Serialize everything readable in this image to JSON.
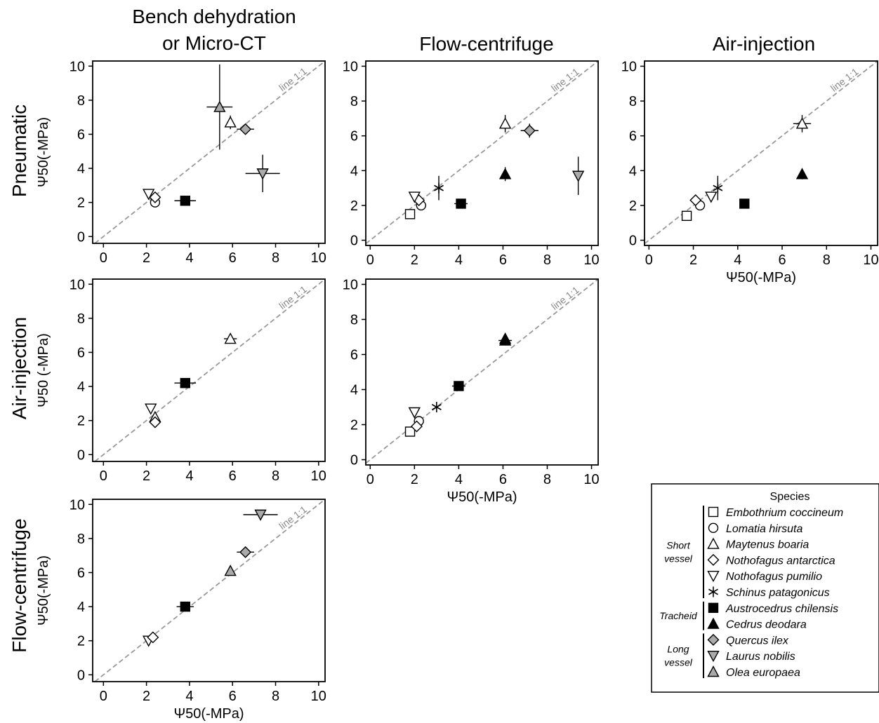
{
  "column_headers": {
    "bench": [
      "Bench dehydration",
      "or Micro-CT"
    ],
    "flow": "Flow-centrifuge",
    "air": "Air-injection"
  },
  "row_headers": {
    "pneumatic": "Pneumatic",
    "air": "Air-injection",
    "flow": "Flow-centrifuge"
  },
  "axis_symbol": "Ψ",
  "axis_sub": "50",
  "axis_unit": "(-MPa)",
  "ref_line_label": "line 1:1",
  "chart_data": [
    {
      "id": "pneu-vs-bench",
      "type": "scatter",
      "xlim": [
        -0.5,
        10.3
      ],
      "ylim": [
        -0.4,
        10.3
      ],
      "xticks": [
        0,
        2,
        4,
        6,
        8,
        10
      ],
      "yticks": [
        0,
        2,
        4,
        6,
        8,
        10
      ],
      "ylabel": "Ψ50(-MPa)",
      "xlabel": "",
      "points": [
        {
          "species": "Lomatia hirsuta",
          "x": 2.4,
          "y": 2.0
        },
        {
          "species": "Nothofagus antarctica",
          "x": 2.4,
          "y": 2.3
        },
        {
          "species": "Nothofagus pumilio",
          "x": 2.1,
          "y": 2.5
        },
        {
          "species": "Austrocedrus chilensis",
          "x": 3.8,
          "y": 2.1,
          "xerr": 0.5
        },
        {
          "species": "Olea europaea",
          "x": 5.4,
          "y": 7.6,
          "xerr": 0.6,
          "yerr": 2.5
        },
        {
          "species": "Maytenus boaria",
          "x": 5.9,
          "y": 6.7,
          "yerr": 0.4
        },
        {
          "species": "Quercus ilex",
          "x": 6.6,
          "y": 6.3,
          "xerr": 0.4
        },
        {
          "species": "Laurus nobilis",
          "x": 7.4,
          "y": 3.7,
          "xerr": 0.8,
          "yerr": 1.1
        }
      ]
    },
    {
      "id": "pneu-vs-flow",
      "type": "scatter",
      "xlim": [
        -0.2,
        10.3
      ],
      "ylim": [
        -0.3,
        10.3
      ],
      "xticks": [
        0,
        2,
        4,
        6,
        8,
        10
      ],
      "yticks": [
        0,
        2,
        4,
        6,
        8,
        10
      ],
      "ylabel": "",
      "xlabel": "",
      "points": [
        {
          "species": "Embothrium coccineum",
          "x": 1.8,
          "y": 1.5
        },
        {
          "species": "Lomatia hirsuta",
          "x": 2.3,
          "y": 2.0
        },
        {
          "species": "Nothofagus antarctica",
          "x": 2.2,
          "y": 2.3
        },
        {
          "species": "Nothofagus pumilio",
          "x": 2.0,
          "y": 2.5
        },
        {
          "species": "Schinus patagonicus",
          "x": 3.1,
          "y": 3.0,
          "yerr": 0.7
        },
        {
          "species": "Austrocedrus chilensis",
          "x": 4.1,
          "y": 2.1,
          "xerr": 0.3
        },
        {
          "species": "Cedrus deodara",
          "x": 6.1,
          "y": 3.8,
          "yerr": 0.4
        },
        {
          "species": "Maytenus boaria",
          "x": 6.1,
          "y": 6.7,
          "yerr": 0.5
        },
        {
          "species": "Quercus ilex",
          "x": 7.2,
          "y": 6.3,
          "xerr": 0.4,
          "yerr": 0.4
        },
        {
          "species": "Laurus nobilis",
          "x": 9.4,
          "y": 3.7,
          "yerr": 1.1
        }
      ]
    },
    {
      "id": "pneu-vs-air",
      "type": "scatter",
      "xlim": [
        -0.2,
        10.3
      ],
      "ylim": [
        -0.3,
        10.3
      ],
      "xticks": [
        0,
        2,
        4,
        6,
        8,
        10
      ],
      "yticks": [
        0,
        2,
        4,
        6,
        8,
        10
      ],
      "ylabel": "",
      "xlabel": "Ψ50(-MPa)",
      "points": [
        {
          "species": "Embothrium coccineum",
          "x": 1.7,
          "y": 1.4
        },
        {
          "species": "Lomatia hirsuta",
          "x": 2.3,
          "y": 2.0
        },
        {
          "species": "Nothofagus antarctica",
          "x": 2.1,
          "y": 2.3
        },
        {
          "species": "Nothofagus pumilio",
          "x": 2.8,
          "y": 2.5
        },
        {
          "species": "Schinus patagonicus",
          "x": 3.1,
          "y": 3.0,
          "yerr": 0.7
        },
        {
          "species": "Austrocedrus chilensis",
          "x": 4.3,
          "y": 2.1
        },
        {
          "species": "Maytenus boaria",
          "x": 6.9,
          "y": 6.7,
          "xerr": 0.4,
          "yerr": 0.5
        },
        {
          "species": "Cedrus deodara",
          "x": 6.9,
          "y": 3.8,
          "yerr": 0.3
        }
      ]
    },
    {
      "id": "air-vs-bench",
      "type": "scatter",
      "xlim": [
        -0.5,
        10.3
      ],
      "ylim": [
        -0.4,
        10.3
      ],
      "xticks": [
        0,
        2,
        4,
        6,
        8,
        10
      ],
      "yticks": [
        0,
        2,
        4,
        6,
        8,
        10
      ],
      "ylabel": "Ψ50 (-MPa)",
      "xlabel": "",
      "points": [
        {
          "species": "Nothofagus pumilio",
          "x": 2.2,
          "y": 2.7
        },
        {
          "species": "Maytenus boaria",
          "x": 2.4,
          "y": 2.2
        },
        {
          "species": "Nothofagus antarctica",
          "x": 2.4,
          "y": 1.9
        },
        {
          "species": "Austrocedrus chilensis",
          "x": 3.8,
          "y": 4.2,
          "xerr": 0.5
        },
        {
          "species": "Maytenus boaria",
          "x": 5.9,
          "y": 6.8,
          "xerr": 0.3
        }
      ]
    },
    {
      "id": "air-vs-flow",
      "type": "scatter",
      "xlim": [
        -0.2,
        10.3
      ],
      "ylim": [
        -0.3,
        10.3
      ],
      "xticks": [
        0,
        2,
        4,
        6,
        8,
        10
      ],
      "yticks": [
        0,
        2,
        4,
        6,
        8,
        10
      ],
      "ylabel": "",
      "xlabel": "Ψ50(-MPa)",
      "points": [
        {
          "species": "Embothrium coccineum",
          "x": 1.8,
          "y": 1.6
        },
        {
          "species": "Nothofagus pumilio",
          "x": 2.0,
          "y": 2.7
        },
        {
          "species": "Lomatia hirsuta",
          "x": 2.2,
          "y": 2.2
        },
        {
          "species": "Nothofagus antarctica",
          "x": 2.1,
          "y": 1.9
        },
        {
          "species": "Schinus patagonicus",
          "x": 3.0,
          "y": 3.0
        },
        {
          "species": "Austrocedrus chilensis",
          "x": 4.0,
          "y": 4.2,
          "xerr": 0.3
        },
        {
          "species": "Maytenus boaria",
          "x": 6.1,
          "y": 6.9
        },
        {
          "species": "Cedrus deodara",
          "x": 6.1,
          "y": 6.8,
          "xerr": 0.3
        }
      ]
    },
    {
      "id": "flow-vs-bench",
      "type": "scatter",
      "xlim": [
        -0.5,
        10.3
      ],
      "ylim": [
        -0.4,
        10.3
      ],
      "xticks": [
        0,
        2,
        4,
        6,
        8,
        10
      ],
      "yticks": [
        0,
        2,
        4,
        6,
        8,
        10
      ],
      "ylabel": "Ψ50(-MPa)",
      "xlabel": "Ψ50(-MPa)",
      "points": [
        {
          "species": "Nothofagus pumilio",
          "x": 2.1,
          "y": 2.0
        },
        {
          "species": "Nothofagus antarctica",
          "x": 2.3,
          "y": 2.2
        },
        {
          "species": "Austrocedrus chilensis",
          "x": 3.8,
          "y": 4.0,
          "xerr": 0.4
        },
        {
          "species": "Olea europaea",
          "x": 5.9,
          "y": 6.1
        },
        {
          "species": "Quercus ilex",
          "x": 6.6,
          "y": 7.2,
          "xerr": 0.4
        },
        {
          "species": "Laurus nobilis",
          "x": 7.3,
          "y": 9.4,
          "xerr": 0.8
        }
      ]
    }
  ],
  "legend": {
    "title": "Species",
    "groups": [
      {
        "label": [
          "Short",
          "vessel"
        ],
        "items": [
          {
            "name": "Embothrium coccineum",
            "marker": "square-open"
          },
          {
            "name": "Lomatia hirsuta",
            "marker": "circle-open"
          },
          {
            "name": "Maytenus boaria",
            "marker": "triangle-up-open"
          },
          {
            "name": "Nothofagus antarctica",
            "marker": "diamond-open"
          },
          {
            "name": "Nothofagus pumilio",
            "marker": "triangle-down-open"
          },
          {
            "name": "Schinus patagonicus",
            "marker": "asterisk"
          }
        ]
      },
      {
        "label": [
          "Tracheid"
        ],
        "items": [
          {
            "name": "Austrocedrus chilensis",
            "marker": "square-filled"
          },
          {
            "name": "Cedrus deodara",
            "marker": "triangle-up-filled"
          }
        ]
      },
      {
        "label": [
          "Long",
          "vessel"
        ],
        "items": [
          {
            "name": "Quercus ilex",
            "marker": "diamond-grey"
          },
          {
            "name": "Laurus nobilis",
            "marker": "triangle-down-grey"
          },
          {
            "name": "Olea europaea",
            "marker": "triangle-up-grey"
          }
        ]
      }
    ]
  },
  "species_markers": {
    "Embothrium coccineum": "square-open",
    "Lomatia hirsuta": "circle-open",
    "Maytenus boaria": "triangle-up-open",
    "Nothofagus antarctica": "diamond-open",
    "Nothofagus pumilio": "triangle-down-open",
    "Schinus patagonicus": "asterisk",
    "Austrocedrus chilensis": "square-filled",
    "Cedrus deodara": "triangle-up-filled",
    "Quercus ilex": "diamond-grey",
    "Laurus nobilis": "triangle-down-grey",
    "Olea europaea": "triangle-up-grey"
  },
  "colors": {
    "axis": "#000000",
    "ref_line": "#999999",
    "grey_fill": "#aaaaaa",
    "ref_label": "#888888"
  }
}
